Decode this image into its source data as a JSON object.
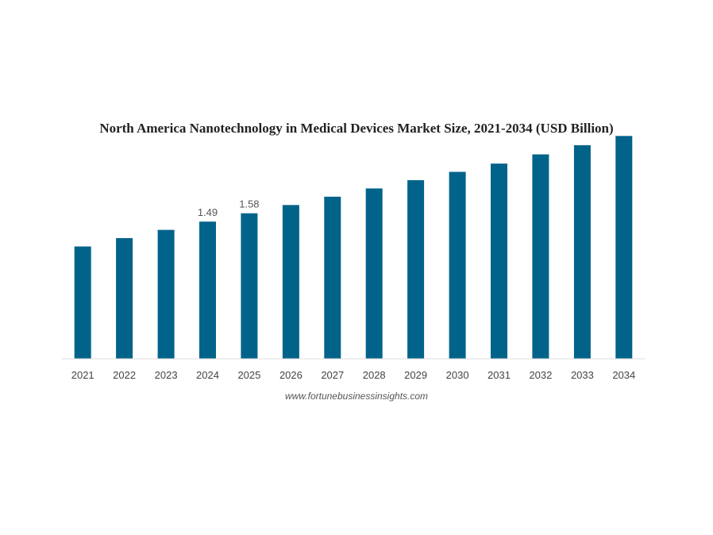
{
  "chart_data": {
    "type": "bar",
    "title": "North America Nanotechnology in Medical Devices Market Size, 2021-2034 (USD Billion)",
    "xlabel": "",
    "ylabel": "",
    "categories": [
      "2021",
      "2022",
      "2023",
      "2024",
      "2025",
      "2026",
      "2027",
      "2028",
      "2029",
      "2030",
      "2031",
      "2032",
      "2033",
      "2034"
    ],
    "values": [
      1.22,
      1.31,
      1.4,
      1.49,
      1.58,
      1.67,
      1.76,
      1.85,
      1.94,
      2.03,
      2.12,
      2.22,
      2.32,
      2.42
    ],
    "data_labels": [
      "",
      "",
      "",
      "1.49",
      "1.58",
      "",
      "",
      "",
      "",
      "",
      "",
      "",
      "",
      ""
    ],
    "ylim": [
      0,
      2.5
    ],
    "grid": false,
    "bar_color": "#02638a",
    "source": "www.fortunebusinessinsights.com"
  }
}
